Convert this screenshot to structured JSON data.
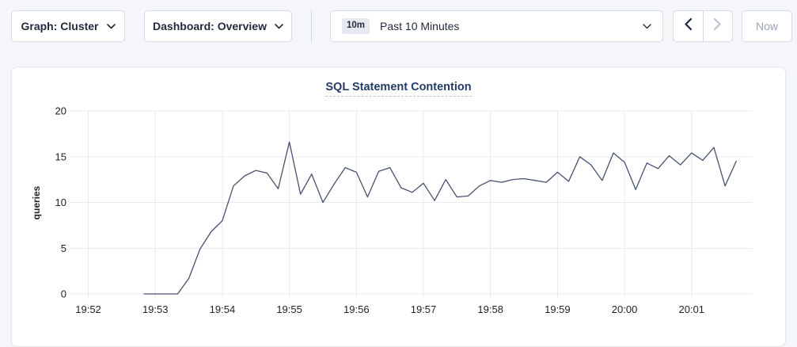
{
  "toolbar": {
    "graph_dropdown_label": "Graph: Cluster",
    "dashboard_dropdown_label": "Dashboard: Overview",
    "time_range_badge": "10m",
    "time_range_label": "Past 10 Minutes",
    "now_button_label": "Now"
  },
  "colors": {
    "page_bg": "#f4f6f9",
    "panel_bg": "#ffffff",
    "border": "#d5dbe5",
    "dark_navy_text": "#1f2a3c",
    "disabled_text": "#9aa3b5",
    "disabled_icon": "#bcc3d0",
    "title_navy": "#243b67",
    "gridline": "#e9ebee",
    "tick_text": "#202327",
    "series_line": "#46526e"
  },
  "chart_data": {
    "type": "line",
    "title": "SQL Statement Contention",
    "ylabel": "queries",
    "ylim": [
      0,
      20
    ],
    "yticks": [
      0,
      5,
      10,
      15,
      20
    ],
    "xticks": [
      "19:52",
      "19:53",
      "19:54",
      "19:55",
      "19:56",
      "19:57",
      "19:58",
      "19:59",
      "20:00",
      "20:01"
    ],
    "x_domain": [
      "19:51:49",
      "20:01:54"
    ],
    "grid": true,
    "legend": "none",
    "series": [
      {
        "name": "queries",
        "start_time": "19:52:50",
        "interval_seconds": 10,
        "values": [
          0,
          0,
          0,
          0,
          1.7,
          4.9,
          6.8,
          8.0,
          11.8,
          12.9,
          13.5,
          13.2,
          11.5,
          16.6,
          10.9,
          13.1,
          10.0,
          12.0,
          13.8,
          13.3,
          10.6,
          13.4,
          13.8,
          11.6,
          11.1,
          12.1,
          10.2,
          12.5,
          10.6,
          10.7,
          11.8,
          12.4,
          12.2,
          12.5,
          12.6,
          12.4,
          12.2,
          13.3,
          12.3,
          15.0,
          14.1,
          12.4,
          15.4,
          14.4,
          11.4,
          14.3,
          13.7,
          15.1,
          14.1,
          15.4,
          14.6,
          16.0,
          11.8,
          14.5
        ]
      }
    ]
  }
}
